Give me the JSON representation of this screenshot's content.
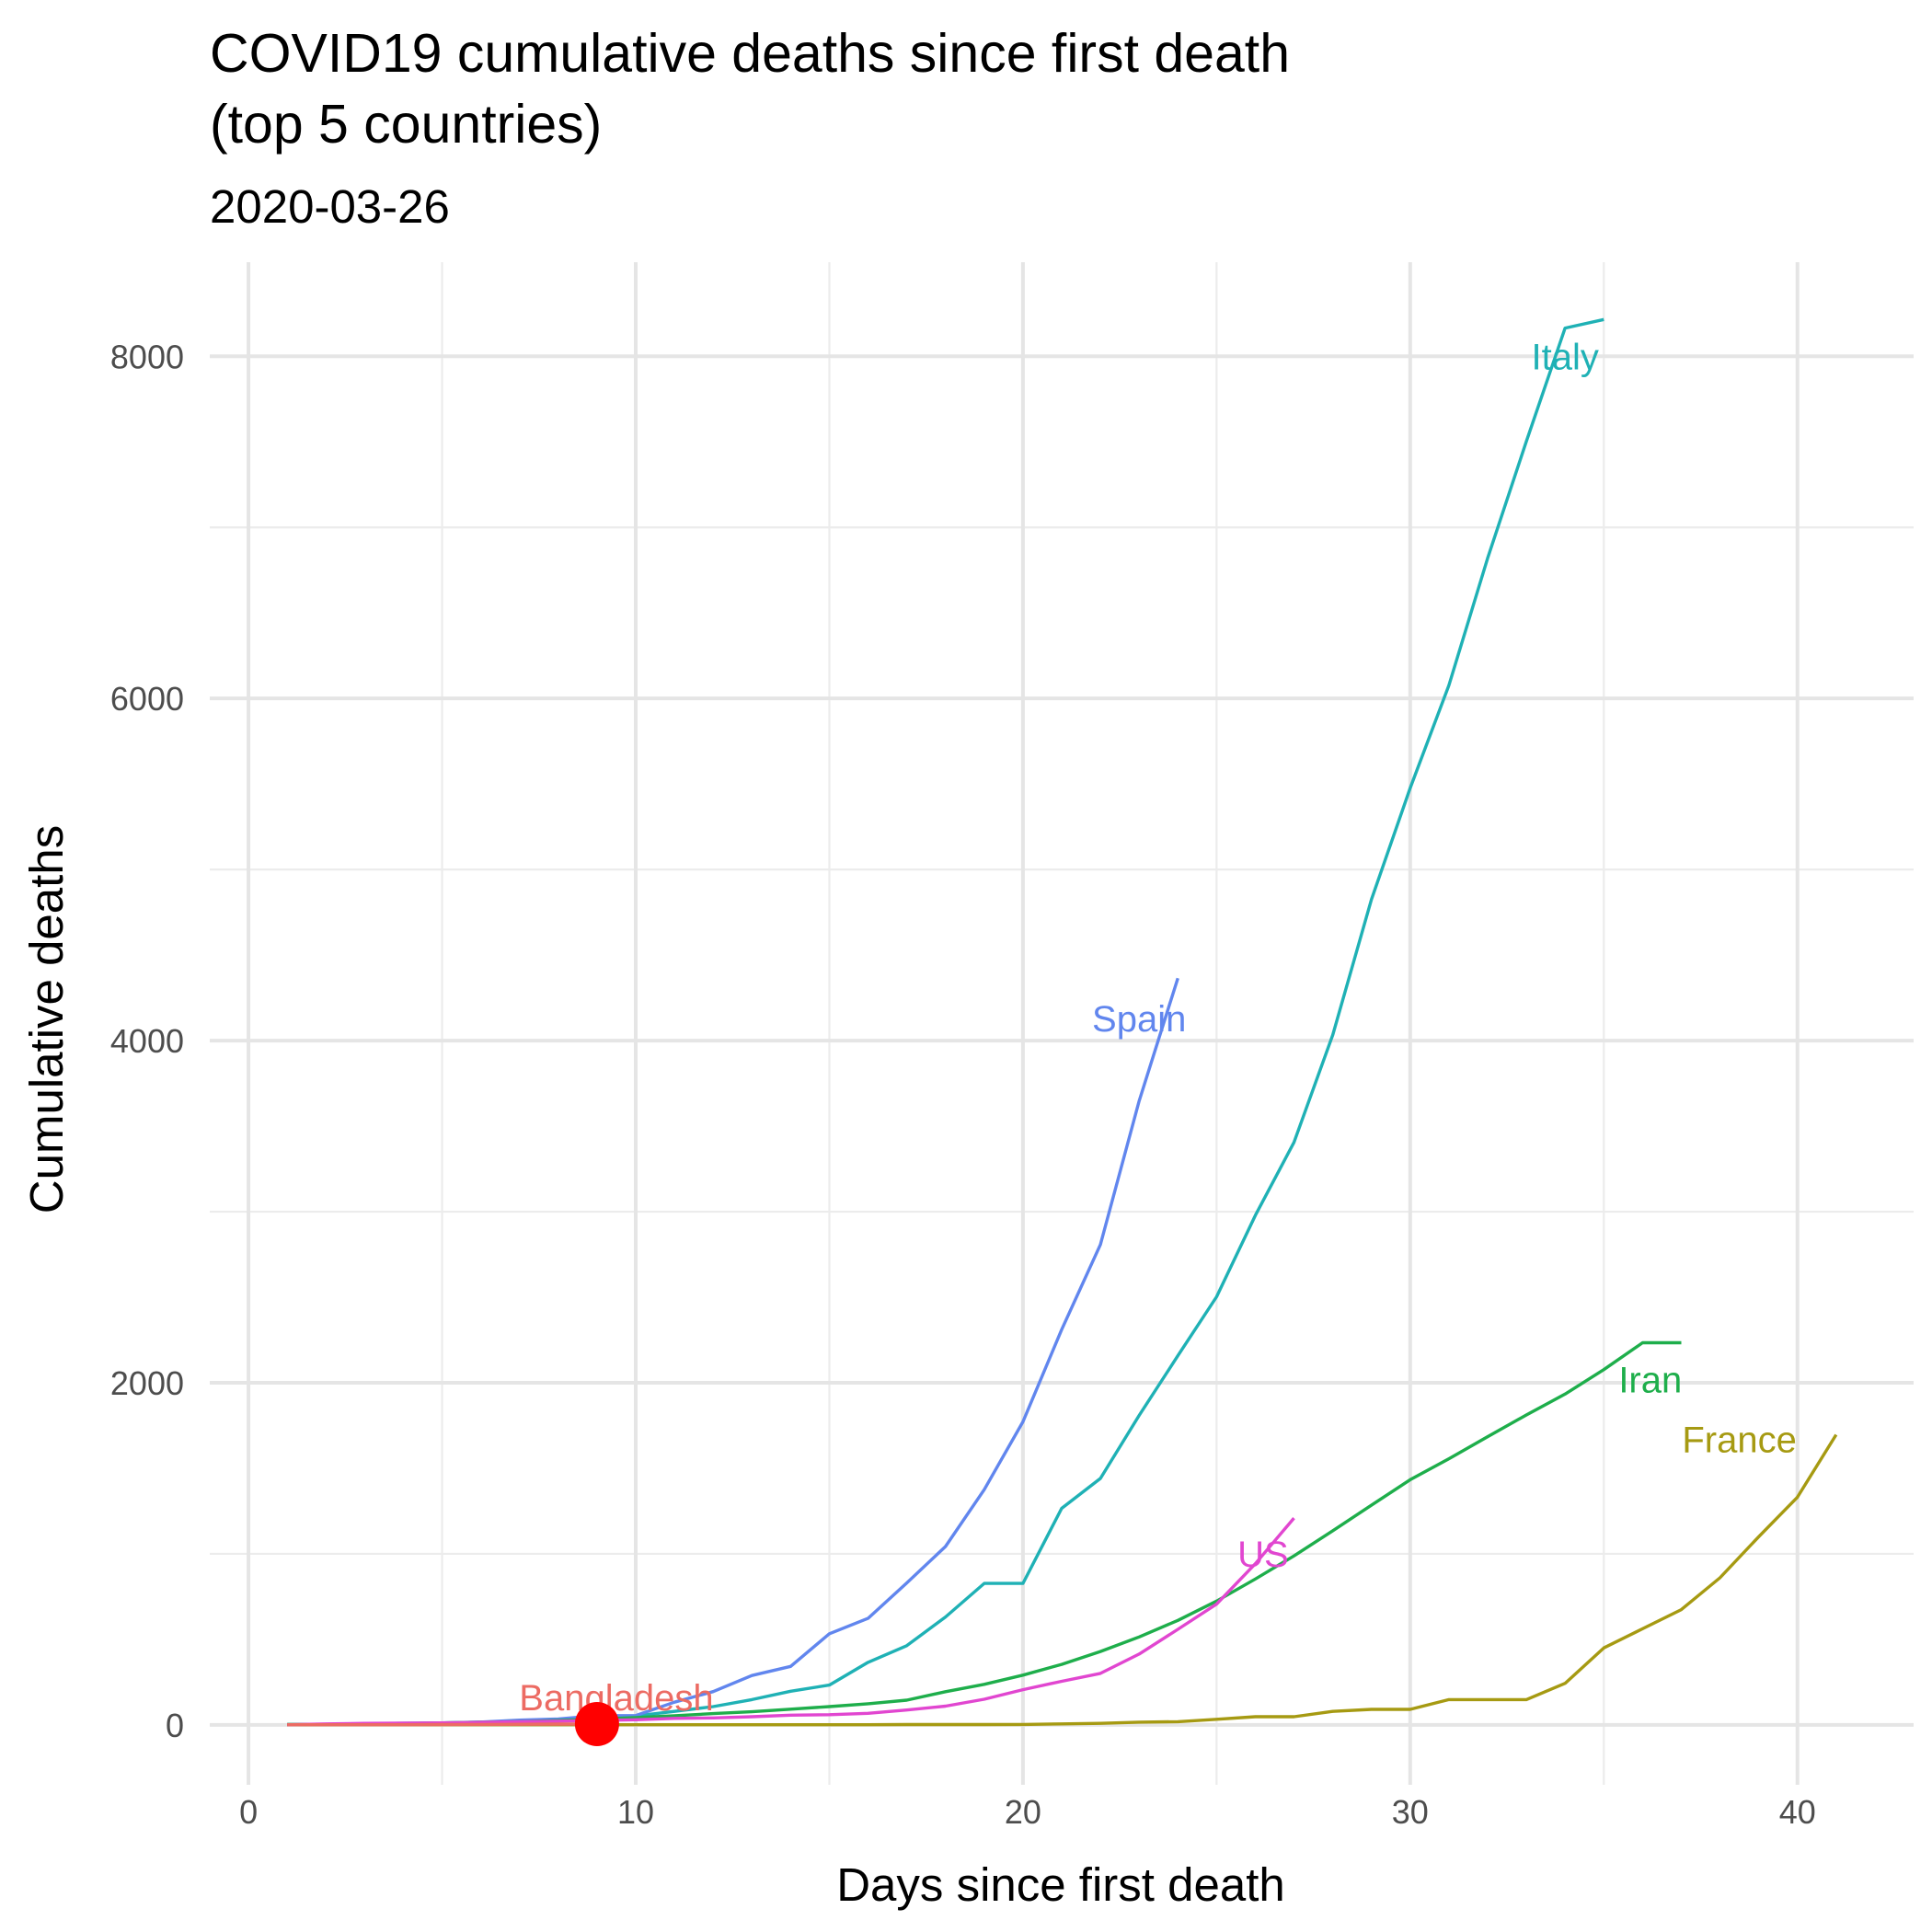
{
  "chart_data": {
    "type": "line",
    "title_lines": [
      "COVID19 cumulative deaths since first death",
      "(top 5 countries)"
    ],
    "subtitle": "2020-03-26",
    "xlabel": "Days since first death",
    "ylabel": "Cumulative deaths",
    "xlim": [
      -1,
      43
    ],
    "ylim": [
      -350,
      8550
    ],
    "x_ticks": [
      0,
      10,
      20,
      30,
      40
    ],
    "y_ticks": [
      0,
      2000,
      4000,
      6000,
      8000
    ],
    "grid": true,
    "legend": "none (series labelled directly on lines)",
    "series": [
      {
        "name": "Italy",
        "color": "#1fb1b5",
        "x": [
          1,
          2,
          3,
          4,
          5,
          6,
          7,
          8,
          9,
          10,
          11,
          12,
          13,
          14,
          15,
          16,
          17,
          18,
          19,
          20,
          21,
          22,
          23,
          24,
          25,
          26,
          27,
          28,
          29,
          30,
          31,
          32,
          33,
          34,
          35
        ],
        "y": [
          2,
          3,
          7,
          10,
          12,
          17,
          21,
          29,
          34,
          52,
          79,
          107,
          148,
          197,
          233,
          366,
          463,
          631,
          827,
          827,
          1266,
          1441,
          1809,
          2158,
          2503,
          2978,
          3405,
          4032,
          4825,
          5476,
          6077,
          6820,
          7503,
          8165,
          8215
        ]
      },
      {
        "name": "Spain",
        "color": "#6186ee",
        "x": [
          1,
          2,
          3,
          4,
          5,
          6,
          7,
          8,
          9,
          10,
          11,
          12,
          13,
          14,
          15,
          16,
          17,
          18,
          19,
          20,
          21,
          22,
          23,
          24
        ],
        "y": [
          1,
          2,
          3,
          5,
          10,
          17,
          28,
          35,
          54,
          55,
          133,
          195,
          289,
          342,
          533,
          623,
          830,
          1043,
          1375,
          1772,
          2311,
          2808,
          3647,
          4365
        ]
      },
      {
        "name": "Iran",
        "color": "#1eae4b",
        "x": [
          1,
          2,
          3,
          4,
          5,
          6,
          7,
          8,
          9,
          10,
          11,
          12,
          13,
          14,
          15,
          16,
          17,
          18,
          19,
          20,
          21,
          22,
          23,
          24,
          25,
          26,
          27,
          28,
          29,
          30,
          31,
          32,
          33,
          34,
          35,
          36,
          37
        ],
        "y": [
          2,
          4,
          5,
          8,
          12,
          16,
          19,
          26,
          34,
          43,
          54,
          66,
          77,
          92,
          107,
          124,
          145,
          194,
          237,
          291,
          354,
          429,
          514,
          611,
          724,
          853,
          988,
          1135,
          1284,
          1433,
          1556,
          1685,
          1812,
          1934,
          2077,
          2234,
          2234
        ]
      },
      {
        "name": "France",
        "color": "#a69a12",
        "x": [
          1,
          2,
          3,
          4,
          5,
          6,
          7,
          8,
          9,
          10,
          11,
          12,
          13,
          14,
          15,
          16,
          17,
          18,
          19,
          20,
          21,
          22,
          23,
          24,
          25,
          26,
          27,
          28,
          29,
          30,
          31,
          32,
          33,
          34,
          35,
          36,
          37,
          38,
          39,
          40,
          41
        ],
        "y": [
          1,
          1,
          1,
          1,
          1,
          1,
          1,
          1,
          1,
          1,
          1,
          1,
          1,
          1,
          1,
          1,
          2,
          2,
          2,
          3,
          6,
          9,
          16,
          19,
          33,
          48,
          48,
          79,
          91,
          91,
          148,
          148,
          148,
          243,
          450,
          562,
          674,
          860,
          1100,
          1331,
          1696
        ]
      },
      {
        "name": "US",
        "color": "#e146d0",
        "x": [
          1,
          2,
          3,
          4,
          5,
          6,
          7,
          8,
          9,
          10,
          11,
          12,
          13,
          14,
          15,
          16,
          17,
          18,
          19,
          20,
          21,
          22,
          23,
          24,
          25,
          26,
          27
        ],
        "y": [
          1,
          6,
          9,
          11,
          12,
          15,
          19,
          22,
          26,
          30,
          38,
          41,
          48,
          57,
          60,
          68,
          87,
          110,
          150,
          206,
          255,
          301,
          414,
          559,
          706,
          942,
          1209
        ]
      },
      {
        "name": "Bangladesh",
        "color": "#ec6b63",
        "x": [
          1,
          2,
          3,
          4,
          5,
          6,
          7,
          8,
          9
        ],
        "y": [
          1,
          1,
          1,
          1,
          2,
          3,
          4,
          5,
          5
        ]
      }
    ],
    "labels": [
      {
        "text": "Italy",
        "x": 34,
        "y": 8000,
        "series": "Italy"
      },
      {
        "text": "Spain",
        "x": 23,
        "y": 4130,
        "series": "Spain"
      },
      {
        "text": "Iran",
        "x": 36.2,
        "y": 2020,
        "series": "Iran"
      },
      {
        "text": "France",
        "x": 38.5,
        "y": 1670,
        "series": "France"
      },
      {
        "text": "US",
        "x": 26.2,
        "y": 1000,
        "series": "US"
      },
      {
        "text": "Bangladesh",
        "x": 9.5,
        "y": 160,
        "series": "Bangladesh"
      }
    ],
    "highlight_point": {
      "name": "Bangladesh",
      "x": 9,
      "y": 5,
      "color": "#ff0000"
    }
  }
}
